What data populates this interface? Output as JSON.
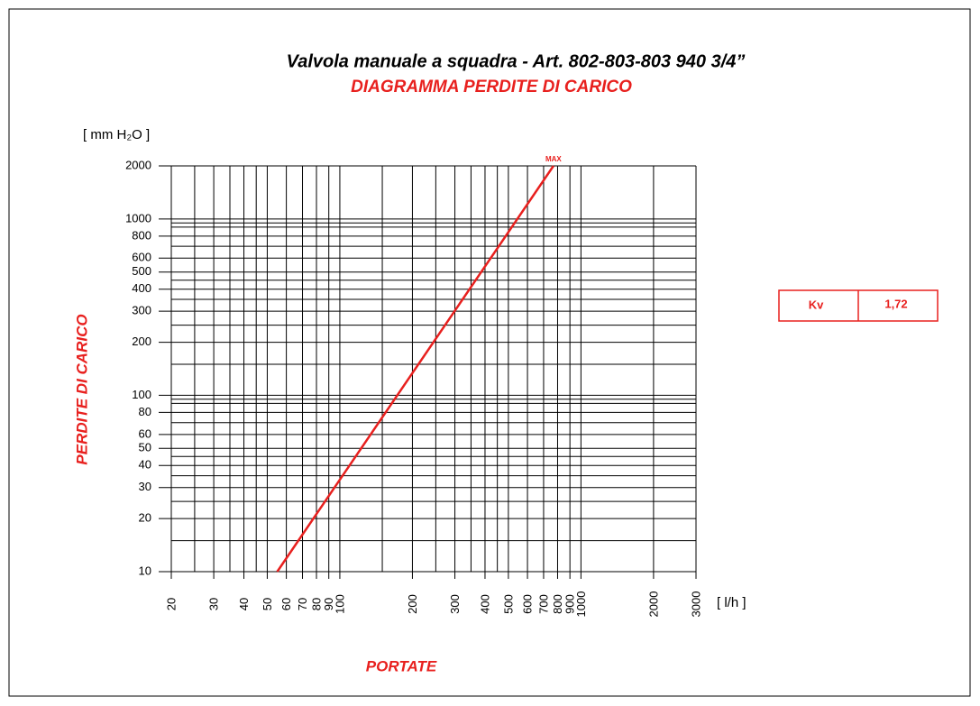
{
  "chart_data": {
    "type": "line",
    "title": "Valvola manuale a squadra  -  Art. 802-803-803 940  3/4”",
    "subtitle": "DIAGRAMMA PERDITE DI CARICO",
    "y_unit": "[ mm H₂O ]",
    "y_label": "PERDITE DI CARICO",
    "x_unit": "[ l/h ]",
    "x_label": "PORTATE",
    "annotation": "MAX",
    "log_x": true,
    "log_y": true,
    "grid": true,
    "xlim": [
      20,
      3000
    ],
    "ylim": [
      10,
      2000
    ],
    "xticks": [
      20,
      30,
      40,
      50,
      60,
      70,
      80,
      90,
      100,
      200,
      300,
      400,
      500,
      600,
      700,
      800,
      900,
      1000,
      2000,
      3000
    ],
    "yticks": [
      10,
      20,
      30,
      40,
      50,
      60,
      80,
      100,
      200,
      300,
      400,
      500,
      600,
      800,
      1000,
      2000
    ],
    "minor_xgrid": [
      25,
      35,
      45,
      150,
      250,
      350,
      450
    ],
    "minor_ygrid": [
      15,
      25,
      35,
      45,
      70,
      90,
      95,
      150,
      250,
      350,
      450,
      700,
      900,
      950
    ],
    "series": [
      {
        "name": "Kv 1,72",
        "color": "#e8201e",
        "x": [
          55,
          769
        ],
        "values": [
          10,
          2000
        ]
      }
    ],
    "table": {
      "header": "Kv",
      "value": "1,72"
    }
  }
}
